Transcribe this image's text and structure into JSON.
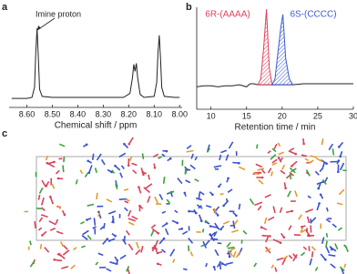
{
  "chart_data": [
    {
      "type": "line",
      "panel_label": "a",
      "xlabel": "Chemical shift / ppm",
      "annotation": "Imine proton",
      "xlim": [
        8.67,
        7.99
      ],
      "ylim": [
        0,
        100
      ],
      "xticks": [
        {
          "value": 8.6,
          "label": "8.60"
        },
        {
          "value": 8.5,
          "label": "8.50"
        },
        {
          "value": 8.4,
          "label": "8.40"
        },
        {
          "value": 8.3,
          "label": "8.30"
        },
        {
          "value": 8.2,
          "label": "8.20"
        },
        {
          "value": 8.1,
          "label": "8.10"
        },
        {
          "value": 8.0,
          "label": "8.00"
        }
      ],
      "series": [
        {
          "color": "#222222",
          "x": [
            8.66,
            8.6,
            8.58,
            8.57,
            8.565,
            8.56,
            8.555,
            8.55,
            8.54,
            8.5,
            8.4,
            8.3,
            8.22,
            8.195,
            8.185,
            8.18,
            8.175,
            8.17,
            8.165,
            8.155,
            8.14,
            8.1,
            8.09,
            8.085,
            8.08,
            8.075,
            8.07,
            8.06,
            8.02,
            8.0
          ],
          "values": [
            9,
            9,
            10,
            20,
            55,
            79,
            50,
            18,
            11,
            10,
            10,
            10,
            10,
            14,
            30,
            43,
            36,
            44,
            30,
            13,
            10,
            11,
            25,
            55,
            72,
            48,
            20,
            11,
            10,
            10
          ]
        }
      ]
    },
    {
      "type": "line",
      "panel_label": "b",
      "xlabel": "Retention time / min",
      "xlim": [
        8,
        30
      ],
      "ylim": [
        0,
        100
      ],
      "xticks": [
        10,
        15,
        20,
        25,
        30
      ],
      "series": [
        {
          "color": "#222222",
          "x": [
            8,
            9,
            10,
            11,
            12,
            13,
            14,
            15,
            15.5,
            16,
            16.6,
            21.5,
            23,
            26,
            30
          ],
          "values": [
            22,
            23,
            23,
            22,
            23,
            23,
            24,
            22,
            25,
            25,
            24,
            24,
            25,
            25,
            25
          ]
        },
        {
          "name": "6R-(AAAA)",
          "color": "#e0405a",
          "hatch": true,
          "x": [
            16.6,
            17.0,
            17.4,
            17.8,
            18.2,
            18.6
          ],
          "values": [
            24,
            30,
            60,
            98,
            40,
            24
          ]
        },
        {
          "name": "6S-(CCCC)",
          "color": "#3b5bd6",
          "hatch": true,
          "x": [
            18.6,
            19.0,
            19.4,
            19.8,
            20.1,
            20.5,
            21.0,
            21.5
          ],
          "values": [
            24,
            30,
            55,
            80,
            93,
            50,
            30,
            24
          ]
        }
      ]
    }
  ],
  "panel_c": {
    "label": "c"
  }
}
